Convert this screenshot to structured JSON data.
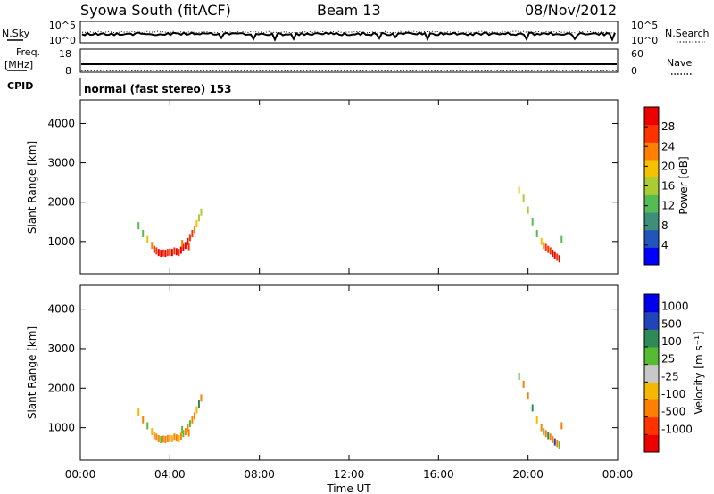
{
  "header": {
    "station": "Syowa South (fitACF)",
    "beam": "Beam 13",
    "date": "08/Nov/2012"
  },
  "top_panels": {
    "nsky_label": "N.Sky",
    "nsearch_label": "N.Search",
    "nsky_ticks": [
      "10^5",
      "10^0"
    ],
    "nsearch_ticks": [
      "10^5",
      "10^0"
    ],
    "freq_label": "Freq.",
    "freq_unit": "[MHz]",
    "freq_ticks": [
      "18",
      "8"
    ],
    "nave_label": "Nave",
    "nave_ticks": [
      "60",
      "0"
    ],
    "cpid_label": "CPID",
    "cpid_text": "normal (fast stereo) 153"
  },
  "x_axis": {
    "title": "Time UT",
    "ticks": [
      "00:00",
      "04:00",
      "08:00",
      "12:00",
      "16:00",
      "20:00",
      "00:00"
    ]
  },
  "colors": {
    "power_scale": [
      "#0000ff",
      "#2255bb",
      "#3d8f7a",
      "#55bb55",
      "#aacc33",
      "#f5c000",
      "#ff8000",
      "#ff3300",
      "#ee0000"
    ],
    "velocity_scale": [
      "#ee0000",
      "#ff3300",
      "#ff8000",
      "#f5b800",
      "#c8c8c8",
      "#55bb33",
      "#2e8b57",
      "#2244bb",
      "#0000ee"
    ]
  },
  "chart_data": [
    {
      "type": "scatter",
      "panel": "power",
      "title": "",
      "xlabel": "Time UT",
      "ylabel": "Slant Range [km]",
      "xlim_hours": [
        0,
        24
      ],
      "ylim": [
        180,
        4600
      ],
      "yticks": [
        "1000",
        "2000",
        "3000",
        "4000"
      ],
      "colorbar": {
        "label": "Power [dB]",
        "ticks": [
          "4",
          "8",
          "12",
          "16",
          "20",
          "24",
          "28"
        ],
        "range": [
          0,
          32
        ]
      },
      "points": [
        {
          "t": 3.3,
          "r": 800,
          "v": 30
        },
        {
          "t": 3.4,
          "r": 760,
          "v": 28
        },
        {
          "t": 3.5,
          "r": 720,
          "v": 30
        },
        {
          "t": 3.6,
          "r": 700,
          "v": 29
        },
        {
          "t": 3.7,
          "r": 710,
          "v": 27
        },
        {
          "t": 3.8,
          "r": 700,
          "v": 30
        },
        {
          "t": 3.9,
          "r": 720,
          "v": 28
        },
        {
          "t": 4.0,
          "r": 730,
          "v": 30
        },
        {
          "t": 4.1,
          "r": 720,
          "v": 29
        },
        {
          "t": 4.2,
          "r": 760,
          "v": 27
        },
        {
          "t": 4.3,
          "r": 740,
          "v": 30
        },
        {
          "t": 4.4,
          "r": 720,
          "v": 28
        },
        {
          "t": 4.5,
          "r": 780,
          "v": 29
        },
        {
          "t": 4.6,
          "r": 850,
          "v": 30
        },
        {
          "t": 4.7,
          "r": 900,
          "v": 29
        },
        {
          "t": 4.8,
          "r": 1000,
          "v": 30
        },
        {
          "t": 4.9,
          "r": 1100,
          "v": 28
        },
        {
          "t": 5.0,
          "r": 1200,
          "v": 26
        },
        {
          "t": 5.1,
          "r": 1300,
          "v": 24
        },
        {
          "t": 5.2,
          "r": 1450,
          "v": 20
        },
        {
          "t": 5.3,
          "r": 1600,
          "v": 17
        },
        {
          "t": 5.4,
          "r": 1750,
          "v": 15
        },
        {
          "t": 3.2,
          "r": 900,
          "v": 24
        },
        {
          "t": 3.0,
          "r": 1050,
          "v": 18
        },
        {
          "t": 2.8,
          "r": 1200,
          "v": 14
        },
        {
          "t": 2.6,
          "r": 1400,
          "v": 12
        },
        {
          "t": 4.85,
          "r": 870,
          "v": 27
        },
        {
          "t": 4.55,
          "r": 950,
          "v": 22
        },
        {
          "t": 20.6,
          "r": 1000,
          "v": 18
        },
        {
          "t": 20.7,
          "r": 900,
          "v": 22
        },
        {
          "t": 20.8,
          "r": 850,
          "v": 25
        },
        {
          "t": 20.9,
          "r": 800,
          "v": 27
        },
        {
          "t": 21.0,
          "r": 760,
          "v": 28
        },
        {
          "t": 21.1,
          "r": 700,
          "v": 29
        },
        {
          "t": 21.2,
          "r": 640,
          "v": 30
        },
        {
          "t": 21.3,
          "r": 600,
          "v": 28
        },
        {
          "t": 21.4,
          "r": 560,
          "v": 29
        },
        {
          "t": 20.4,
          "r": 1200,
          "v": 14
        },
        {
          "t": 20.2,
          "r": 1500,
          "v": 12
        },
        {
          "t": 20.0,
          "r": 1800,
          "v": 15
        },
        {
          "t": 19.8,
          "r": 2100,
          "v": 16
        },
        {
          "t": 19.6,
          "r": 2300,
          "v": 18
        },
        {
          "t": 21.5,
          "r": 1050,
          "v": 14
        }
      ]
    },
    {
      "type": "scatter",
      "panel": "velocity",
      "title": "",
      "xlabel": "Time UT",
      "ylabel": "Slant Range [km]",
      "xlim_hours": [
        0,
        24
      ],
      "ylim": [
        180,
        4600
      ],
      "yticks": [
        "1000",
        "2000",
        "3000",
        "4000"
      ],
      "colorbar": {
        "label": "Velocity [m s⁻¹]",
        "ticks": [
          "1000",
          "500",
          "100",
          "25",
          "-25",
          "-100",
          "-500",
          "-1000"
        ],
        "bin_edges": [
          -1500,
          -1000,
          -500,
          -100,
          -25,
          25,
          100,
          500,
          1000,
          1500
        ]
      },
      "points": [
        {
          "t": 3.3,
          "r": 800,
          "v": -150
        },
        {
          "t": 3.4,
          "r": 760,
          "v": -300
        },
        {
          "t": 3.5,
          "r": 720,
          "v": -120
        },
        {
          "t": 3.6,
          "r": 700,
          "v": 50
        },
        {
          "t": 3.7,
          "r": 710,
          "v": -200
        },
        {
          "t": 3.8,
          "r": 700,
          "v": -400
        },
        {
          "t": 3.9,
          "r": 720,
          "v": -120
        },
        {
          "t": 4.0,
          "r": 730,
          "v": -250
        },
        {
          "t": 4.1,
          "r": 720,
          "v": -80
        },
        {
          "t": 4.2,
          "r": 760,
          "v": -300
        },
        {
          "t": 4.3,
          "r": 740,
          "v": -150
        },
        {
          "t": 4.4,
          "r": 720,
          "v": -60
        },
        {
          "t": 4.5,
          "r": 780,
          "v": -200
        },
        {
          "t": 4.6,
          "r": 850,
          "v": 60
        },
        {
          "t": 4.7,
          "r": 900,
          "v": -120
        },
        {
          "t": 4.8,
          "r": 1000,
          "v": -300
        },
        {
          "t": 4.9,
          "r": 1100,
          "v": 70
        },
        {
          "t": 5.0,
          "r": 1200,
          "v": -150
        },
        {
          "t": 5.1,
          "r": 1300,
          "v": -400
        },
        {
          "t": 5.2,
          "r": 1450,
          "v": -80
        },
        {
          "t": 5.3,
          "r": 1600,
          "v": 200
        },
        {
          "t": 5.4,
          "r": 1750,
          "v": -150
        },
        {
          "t": 3.2,
          "r": 900,
          "v": -40
        },
        {
          "t": 3.0,
          "r": 1050,
          "v": 60
        },
        {
          "t": 2.8,
          "r": 1200,
          "v": -120
        },
        {
          "t": 2.6,
          "r": 1400,
          "v": -60
        },
        {
          "t": 4.85,
          "r": 870,
          "v": -250
        },
        {
          "t": 4.55,
          "r": 950,
          "v": 40
        },
        {
          "t": 20.6,
          "r": 1000,
          "v": -150
        },
        {
          "t": 20.7,
          "r": 900,
          "v": 60
        },
        {
          "t": 20.8,
          "r": 850,
          "v": -200
        },
        {
          "t": 20.9,
          "r": 800,
          "v": 300
        },
        {
          "t": 21.0,
          "r": 760,
          "v": -120
        },
        {
          "t": 21.1,
          "r": 700,
          "v": -400
        },
        {
          "t": 21.2,
          "r": 640,
          "v": 700
        },
        {
          "t": 21.3,
          "r": 600,
          "v": -200
        },
        {
          "t": 21.4,
          "r": 560,
          "v": 50
        },
        {
          "t": 20.4,
          "r": 1200,
          "v": -60
        },
        {
          "t": 20.2,
          "r": 1500,
          "v": 200
        },
        {
          "t": 20.0,
          "r": 1800,
          "v": -150
        },
        {
          "t": 19.8,
          "r": 2100,
          "v": -300
        },
        {
          "t": 19.6,
          "r": 2300,
          "v": 60
        },
        {
          "t": 21.5,
          "r": 1050,
          "v": -120
        }
      ]
    }
  ]
}
